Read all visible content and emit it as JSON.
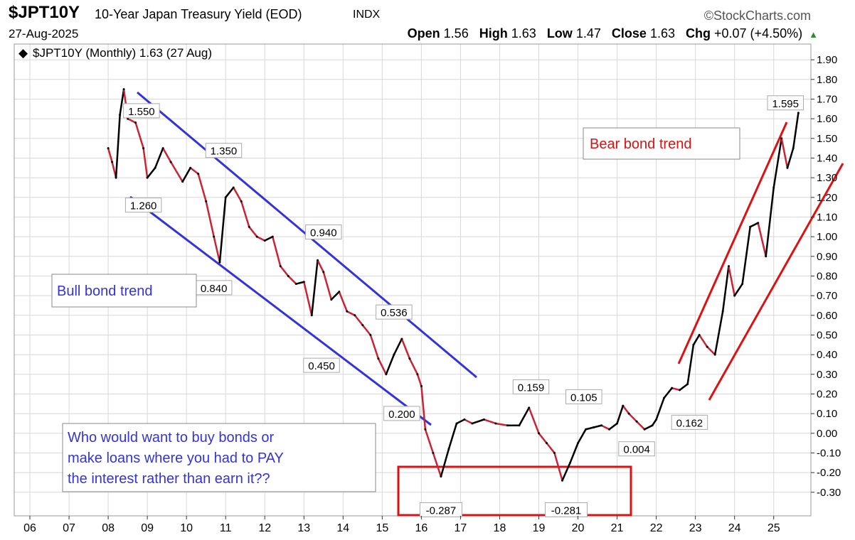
{
  "header": {
    "symbol": "$JPT10Y",
    "name": "10-Year Japan Treasury Yield (EOD)",
    "exchange": "INDX",
    "brand": "©StockCharts.com",
    "date": "27-Aug-2025",
    "open_label": "Open",
    "open": "1.56",
    "high_label": "High",
    "high": "1.63",
    "low_label": "Low",
    "low": "1.47",
    "close_label": "Close",
    "close": "1.63",
    "chg_label": "Chg",
    "chg": "+0.07 (+4.50%)",
    "up_icon": "▲"
  },
  "colors": {
    "up": "#000000",
    "down": "#cc2233",
    "bull": "#3333dd",
    "bear": "#dd1111",
    "grid": "#d8d8d8"
  },
  "chart_data": {
    "type": "line",
    "title": "$JPT10Y (Monthly) 1.63 (27 Aug)",
    "xlabel": "",
    "ylabel": "",
    "x_range": [
      2005.6,
      2025.95
    ],
    "ylim": [
      -0.42,
      1.98
    ],
    "x_ticks": [
      {
        "label": "06",
        "x": 2006
      },
      {
        "label": "07",
        "x": 2007
      },
      {
        "label": "08",
        "x": 2008
      },
      {
        "label": "09",
        "x": 2009
      },
      {
        "label": "10",
        "x": 2010
      },
      {
        "label": "11",
        "x": 2011
      },
      {
        "label": "12",
        "x": 2012
      },
      {
        "label": "13",
        "x": 2013
      },
      {
        "label": "14",
        "x": 2014
      },
      {
        "label": "15",
        "x": 2015
      },
      {
        "label": "16",
        "x": 2016
      },
      {
        "label": "17",
        "x": 2017
      },
      {
        "label": "18",
        "x": 2018
      },
      {
        "label": "19",
        "x": 2019
      },
      {
        "label": "20",
        "x": 2020
      },
      {
        "label": "21",
        "x": 2021
      },
      {
        "label": "22",
        "x": 2022
      },
      {
        "label": "23",
        "x": 2023
      },
      {
        "label": "24",
        "x": 2024
      },
      {
        "label": "25",
        "x": 2025
      }
    ],
    "y_ticks": [
      {
        "label": "1.90",
        "y": 1.9
      },
      {
        "label": "1.80",
        "y": 1.8
      },
      {
        "label": "1.70",
        "y": 1.7
      },
      {
        "label": "1.60",
        "y": 1.6
      },
      {
        "label": "1.50",
        "y": 1.5
      },
      {
        "label": "1.40",
        "y": 1.4
      },
      {
        "label": "1.30",
        "y": 1.3
      },
      {
        "label": "1.20",
        "y": 1.2
      },
      {
        "label": "1.10",
        "y": 1.1
      },
      {
        "label": "1.00",
        "y": 1.0
      },
      {
        "label": "0.90",
        "y": 0.9
      },
      {
        "label": "0.80",
        "y": 0.8
      },
      {
        "label": "0.70",
        "y": 0.7
      },
      {
        "label": "0.60",
        "y": 0.6
      },
      {
        "label": "0.50",
        "y": 0.5
      },
      {
        "label": "0.40",
        "y": 0.4
      },
      {
        "label": "0.30",
        "y": 0.3
      },
      {
        "label": "0.20",
        "y": 0.2
      },
      {
        "label": "0.10",
        "y": 0.1
      },
      {
        "label": "0.00",
        "y": 0.0
      },
      {
        "label": "-0.10",
        "y": -0.1
      },
      {
        "label": "-0.20",
        "y": -0.2
      },
      {
        "label": "-0.30",
        "y": -0.3
      }
    ],
    "series": [
      {
        "points": [
          [
            2008.0,
            1.45
          ],
          [
            2008.1,
            1.38
          ],
          [
            2008.2,
            1.3
          ],
          [
            2008.3,
            1.62
          ],
          [
            2008.4,
            1.75
          ],
          [
            2008.5,
            1.6
          ],
          [
            2008.7,
            1.58
          ],
          [
            2008.9,
            1.45
          ],
          [
            2009.0,
            1.3
          ],
          [
            2009.2,
            1.35
          ],
          [
            2009.4,
            1.45
          ],
          [
            2009.6,
            1.38
          ],
          [
            2009.9,
            1.28
          ],
          [
            2010.1,
            1.35
          ],
          [
            2010.3,
            1.32
          ],
          [
            2010.5,
            1.18
          ],
          [
            2010.7,
            1.0
          ],
          [
            2010.85,
            0.87
          ],
          [
            2011.0,
            1.2
          ],
          [
            2011.2,
            1.25
          ],
          [
            2011.4,
            1.18
          ],
          [
            2011.6,
            1.05
          ],
          [
            2011.8,
            1.0
          ],
          [
            2012.0,
            0.98
          ],
          [
            2012.2,
            1.0
          ],
          [
            2012.4,
            0.85
          ],
          [
            2012.6,
            0.8
          ],
          [
            2012.8,
            0.76
          ],
          [
            2013.0,
            0.77
          ],
          [
            2013.2,
            0.6
          ],
          [
            2013.35,
            0.88
          ],
          [
            2013.5,
            0.82
          ],
          [
            2013.7,
            0.68
          ],
          [
            2013.9,
            0.72
          ],
          [
            2014.1,
            0.62
          ],
          [
            2014.3,
            0.6
          ],
          [
            2014.5,
            0.55
          ],
          [
            2014.7,
            0.5
          ],
          [
            2014.9,
            0.38
          ],
          [
            2015.1,
            0.3
          ],
          [
            2015.3,
            0.4
          ],
          [
            2015.5,
            0.48
          ],
          [
            2015.7,
            0.38
          ],
          [
            2015.9,
            0.3
          ],
          [
            2016.0,
            0.24
          ],
          [
            2016.1,
            0.02
          ],
          [
            2016.3,
            -0.1
          ],
          [
            2016.5,
            -0.22
          ],
          [
            2016.7,
            -0.08
          ],
          [
            2016.9,
            0.05
          ],
          [
            2017.1,
            0.07
          ],
          [
            2017.3,
            0.05
          ],
          [
            2017.6,
            0.07
          ],
          [
            2017.9,
            0.05
          ],
          [
            2018.2,
            0.04
          ],
          [
            2018.5,
            0.04
          ],
          [
            2018.75,
            0.13
          ],
          [
            2019.0,
            0.0
          ],
          [
            2019.2,
            -0.05
          ],
          [
            2019.4,
            -0.1
          ],
          [
            2019.6,
            -0.24
          ],
          [
            2019.8,
            -0.15
          ],
          [
            2020.0,
            -0.05
          ],
          [
            2020.2,
            0.02
          ],
          [
            2020.4,
            0.03
          ],
          [
            2020.6,
            0.04
          ],
          [
            2020.8,
            0.02
          ],
          [
            2021.0,
            0.05
          ],
          [
            2021.15,
            0.14
          ],
          [
            2021.3,
            0.1
          ],
          [
            2021.5,
            0.06
          ],
          [
            2021.7,
            0.02
          ],
          [
            2021.9,
            0.04
          ],
          [
            2022.0,
            0.07
          ],
          [
            2022.2,
            0.18
          ],
          [
            2022.4,
            0.23
          ],
          [
            2022.6,
            0.22
          ],
          [
            2022.8,
            0.25
          ],
          [
            2022.95,
            0.45
          ],
          [
            2023.1,
            0.5
          ],
          [
            2023.3,
            0.44
          ],
          [
            2023.5,
            0.4
          ],
          [
            2023.7,
            0.62
          ],
          [
            2023.85,
            0.85
          ],
          [
            2024.0,
            0.7
          ],
          [
            2024.2,
            0.76
          ],
          [
            2024.4,
            1.05
          ],
          [
            2024.6,
            1.07
          ],
          [
            2024.8,
            0.9
          ],
          [
            2025.0,
            1.25
          ],
          [
            2025.2,
            1.5
          ],
          [
            2025.35,
            1.35
          ],
          [
            2025.5,
            1.45
          ],
          [
            2025.63,
            1.63
          ]
        ]
      }
    ],
    "annotations": [
      {
        "text": "1.550",
        "x": 2008.85,
        "y": 1.63
      },
      {
        "text": "1.350",
        "x": 2010.95,
        "y": 1.428
      },
      {
        "text": "1.260",
        "x": 2008.9,
        "y": 1.15
      },
      {
        "text": "0.940",
        "x": 2013.5,
        "y": 1.013
      },
      {
        "text": "0.840",
        "x": 2010.7,
        "y": 0.73
      },
      {
        "text": "0.536",
        "x": 2015.3,
        "y": 0.606
      },
      {
        "text": "0.450",
        "x": 2013.45,
        "y": 0.335
      },
      {
        "text": "0.200",
        "x": 2015.5,
        "y": 0.09
      },
      {
        "text": "-0.287",
        "x": 2016.5,
        "y": -0.4
      },
      {
        "text": "0.159",
        "x": 2018.8,
        "y": 0.225
      },
      {
        "text": "0.105",
        "x": 2020.15,
        "y": 0.175
      },
      {
        "text": "-0.281",
        "x": 2019.7,
        "y": -0.4
      },
      {
        "text": "0.004",
        "x": 2021.5,
        "y": -0.09
      },
      {
        "text": "0.162",
        "x": 2022.85,
        "y": 0.045
      },
      {
        "text": "1.595",
        "x": 2025.3,
        "y": 1.67
      }
    ],
    "callouts": {
      "bull": "Bull bond trend",
      "bear": "Bear bond trend",
      "note_line1": "Who would want to buy bonds or",
      "note_line2": "make loans where you had to PAY",
      "note_line3": "the interest rather than earn it??"
    }
  }
}
